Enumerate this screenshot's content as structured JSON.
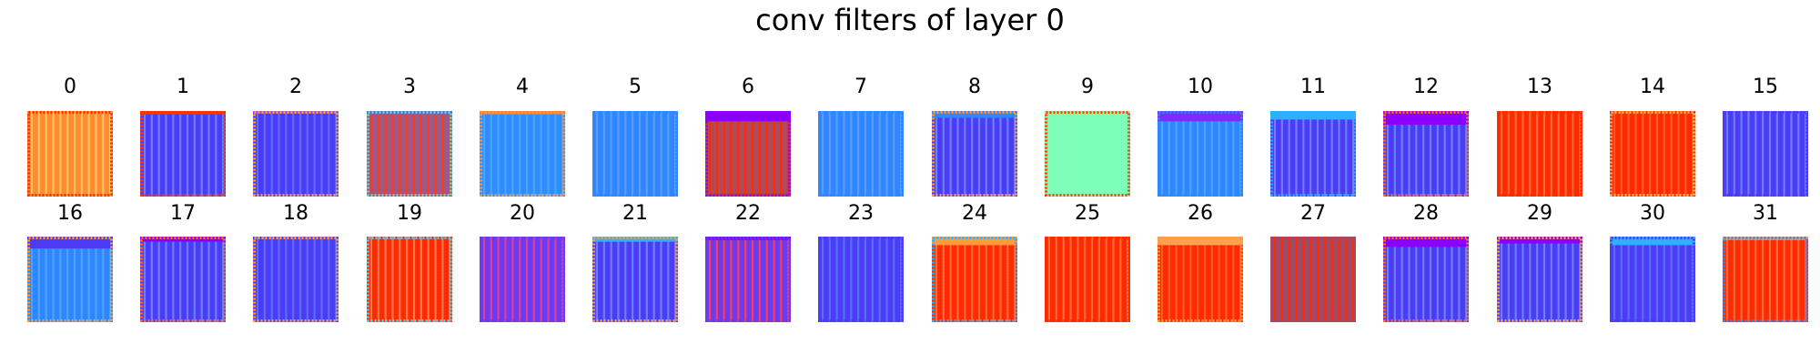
{
  "chart_data": {
    "type": "heatmap",
    "title": "conv filters of layer 0",
    "colormap": "rainbow",
    "filters": [
      {
        "label": "0",
        "base": "#ff8c2e",
        "stripe": "#ffc266",
        "edge": "#ff2a00",
        "top": "#ff7a00",
        "topFrac": 0.0
      },
      {
        "label": "1",
        "base": "#4b3cf5",
        "stripe": "#6f7dff",
        "edge": "#ff3b00",
        "top": "#ff2a00",
        "topFrac": 0.04
      },
      {
        "label": "2",
        "base": "#4b3cf5",
        "stripe": "#5c6cff",
        "edge": "#ff9b3a",
        "top": "#8a4dff",
        "topFrac": 0.03
      },
      {
        "label": "3",
        "base": "#9a5a8a",
        "stripe": "#ff3a1a",
        "edge": "#5ee0c0",
        "top": "#6a58e8",
        "topFrac": 0.03
      },
      {
        "label": "4",
        "base": "#2f8cff",
        "stripe": "#4aa3ff",
        "edge": "#ff9b3a",
        "top": "#ff7a3a",
        "topFrac": 0.04
      },
      {
        "label": "5",
        "base": "#2f86ff",
        "stripe": "#5a9dff",
        "edge": "#2f86ff",
        "top": "#2f86ff",
        "topFrac": 0.0
      },
      {
        "label": "6",
        "base": "#b04a5a",
        "stripe": "#ff2a00",
        "edge": "#8f00ff",
        "top": "#8a00ff",
        "topFrac": 0.12
      },
      {
        "label": "7",
        "base": "#2f86ff",
        "stripe": "#5a9dff",
        "edge": "#2f86ff",
        "top": "#2f86ff",
        "topFrac": 0.0
      },
      {
        "label": "8",
        "base": "#4b3cf5",
        "stripe": "#6f7dff",
        "edge": "#ff9b3a",
        "top": "#2f86ff",
        "topFrac": 0.08
      },
      {
        "label": "9",
        "base": "#7dffb8",
        "stripe": "#7dffb8",
        "edge": "#ff3b00",
        "top": "#7dffb8",
        "topFrac": 0.0
      },
      {
        "label": "10",
        "base": "#2f86ff",
        "stripe": "#4aa3ff",
        "edge": "#2f86ff",
        "top": "#7a2cff",
        "topFrac": 0.12
      },
      {
        "label": "11",
        "base": "#4b3cf5",
        "stripe": "#6f7dff",
        "edge": "#2fb0ff",
        "top": "#2fb0ff",
        "topFrac": 0.1
      },
      {
        "label": "12",
        "base": "#4b3cf5",
        "stripe": "#6f7dff",
        "edge": "#ff6a2a",
        "top": "#8a00ff",
        "topFrac": 0.16
      },
      {
        "label": "13",
        "base": "#ff2a00",
        "stripe": "#ff6a3a",
        "edge": "#ff2a00",
        "top": "#ff2a00",
        "topFrac": 0.0
      },
      {
        "label": "14",
        "base": "#ff2a00",
        "stripe": "#ff5a2a",
        "edge": "#ffb060",
        "top": "#ff2a00",
        "topFrac": 0.0
      },
      {
        "label": "15",
        "base": "#4b3cf5",
        "stripe": "#6f7dff",
        "edge": "#4b3cf5",
        "top": "#4b3cf5",
        "topFrac": 0.0
      },
      {
        "label": "16",
        "base": "#2f86ff",
        "stripe": "#4aa3ff",
        "edge": "#ff9b3a",
        "top": "#4b3cf5",
        "topFrac": 0.14
      },
      {
        "label": "17",
        "base": "#4b3cf5",
        "stripe": "#6f7dff",
        "edge": "#ff6a2a",
        "top": "#8a00ff",
        "topFrac": 0.06
      },
      {
        "label": "18",
        "base": "#4b3cf5",
        "stripe": "#5c6cff",
        "edge": "#ff9b3a",
        "top": "#4b3cf5",
        "topFrac": 0.0
      },
      {
        "label": "19",
        "base": "#ff2a00",
        "stripe": "#ff7a4a",
        "edge": "#4ad0ff",
        "top": "#ff2a00",
        "topFrac": 0.0
      },
      {
        "label": "20",
        "base": "#6a3cf0",
        "stripe": "#e03ca0",
        "edge": "#6a3cf0",
        "top": "#6a3cf0",
        "topFrac": 0.0
      },
      {
        "label": "21",
        "base": "#4b3cf5",
        "stripe": "#6f7dff",
        "edge": "#ff9b3a",
        "top": "#2fb0ff",
        "topFrac": 0.06
      },
      {
        "label": "22",
        "base": "#6a3cf0",
        "stripe": "#ff3a5a",
        "edge": "#6a3cf0",
        "top": "#8a00ff",
        "topFrac": 0.04
      },
      {
        "label": "23",
        "base": "#4b3cf5",
        "stripe": "#5c6cff",
        "edge": "#4b3cf5",
        "top": "#4b3cf5",
        "topFrac": 0.0
      },
      {
        "label": "24",
        "base": "#ff2a00",
        "stripe": "#ff6a3a",
        "edge": "#2fb0ff",
        "top": "#ff9b3a",
        "topFrac": 0.1
      },
      {
        "label": "25",
        "base": "#ff2a00",
        "stripe": "#ff6a3a",
        "edge": "#ff2a00",
        "top": "#ff2a00",
        "topFrac": 0.0
      },
      {
        "label": "26",
        "base": "#ff2a00",
        "stripe": "#ff5a2a",
        "edge": "#ff9b3a",
        "top": "#ffa050",
        "topFrac": 0.1
      },
      {
        "label": "27",
        "base": "#a04a6a",
        "stripe": "#ff2a00",
        "edge": "#a04a6a",
        "top": "#a04a6a",
        "topFrac": 0.0
      },
      {
        "label": "28",
        "base": "#4b3cf5",
        "stripe": "#6f7dff",
        "edge": "#ff6a2a",
        "top": "#8a00ff",
        "topFrac": 0.12
      },
      {
        "label": "29",
        "base": "#4b3cf5",
        "stripe": "#6f7dff",
        "edge": "#ff9b3a",
        "top": "#8a00ff",
        "topFrac": 0.08
      },
      {
        "label": "30",
        "base": "#4b3cf5",
        "stripe": "#5c6cff",
        "edge": "#4b3cf5",
        "top": "#2fb0ff",
        "topFrac": 0.1
      },
      {
        "label": "31",
        "base": "#ff2a00",
        "stripe": "#ff6a3a",
        "edge": "#2f86ff",
        "top": "#ff9b3a",
        "topFrac": 0.04
      }
    ]
  }
}
